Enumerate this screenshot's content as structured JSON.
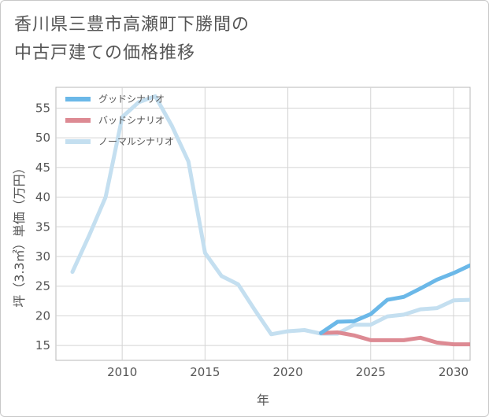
{
  "title_line1": "香川県三豊市高瀬町下勝間の",
  "title_line2": "中古戸建ての価格推移",
  "chart_data": {
    "type": "line",
    "title": "香川県三豊市高瀬町下勝間の中古戸建ての価格推移",
    "xlabel": "年",
    "ylabel": "坪（3.3㎡）単価（万円）",
    "xlim": [
      2006,
      2031
    ],
    "ylim": [
      12.5,
      58.5
    ],
    "xticks": [
      2010,
      2015,
      2020,
      2025,
      2030
    ],
    "yticks": [
      15,
      20,
      25,
      30,
      35,
      40,
      45,
      50,
      55
    ],
    "grid": true,
    "legend_position": "top-left",
    "series": [
      {
        "name": "グッドシナリオ",
        "color": "#6bb8e8",
        "x": [
          2022,
          2023,
          2024,
          2025,
          2026,
          2027,
          2028,
          2029,
          2030,
          2031
        ],
        "values": [
          17.1,
          19.0,
          19.1,
          20.3,
          22.7,
          23.2,
          24.6,
          26.1,
          27.2,
          28.5
        ]
      },
      {
        "name": "バッドシナリオ",
        "color": "#dd8a93",
        "x": [
          2022,
          2023,
          2024,
          2025,
          2026,
          2027,
          2028,
          2029,
          2030,
          2031
        ],
        "values": [
          17.1,
          17.2,
          16.7,
          15.9,
          15.9,
          15.9,
          16.3,
          15.5,
          15.2,
          15.2
        ]
      },
      {
        "name": "ノーマルシナリオ",
        "color": "#c4dff0",
        "x": [
          2007,
          2008,
          2009,
          2010,
          2011,
          2012,
          2013,
          2014,
          2015,
          2016,
          2017,
          2018,
          2019,
          2020,
          2021,
          2022,
          2023,
          2024,
          2025,
          2026,
          2027,
          2028,
          2029,
          2030,
          2031
        ],
        "values": [
          27.4,
          33.5,
          40.0,
          53.5,
          56.0,
          57.0,
          52.0,
          46.0,
          30.6,
          26.7,
          25.3,
          21.0,
          16.9,
          17.4,
          17.6,
          17.0,
          17.0,
          18.5,
          18.5,
          19.9,
          20.2,
          21.1,
          21.3,
          22.6,
          22.7
        ]
      }
    ]
  }
}
